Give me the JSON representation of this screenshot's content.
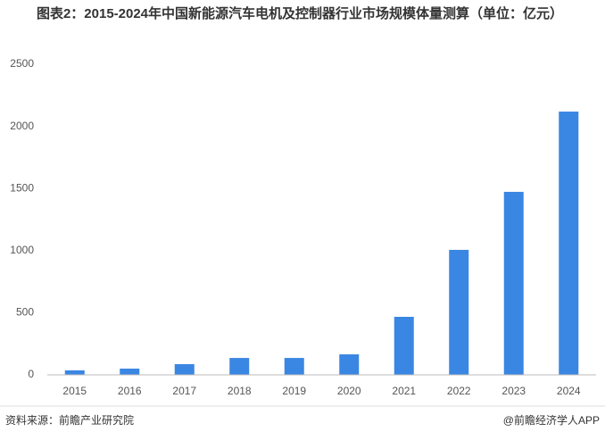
{
  "chart_data": {
    "type": "bar",
    "title": "图表2：2015-2024年中国新能源汽车电机及控制器行业市场规模体量测算（单位：亿元）",
    "categories": [
      "2015",
      "2016",
      "2017",
      "2018",
      "2019",
      "2020",
      "2021",
      "2022",
      "2023",
      "2024"
    ],
    "values": [
      36,
      50,
      86,
      136,
      136,
      165,
      467,
      1006,
      1473,
      2119
    ],
    "color": "#3a86e3",
    "ylim": [
      0,
      2500
    ],
    "yticks": [
      0,
      500,
      1000,
      1500,
      2000,
      2500
    ],
    "grid": false,
    "source": "资料来源：前瞻产业研究院",
    "footer": "@前瞻经济学人APP"
  }
}
